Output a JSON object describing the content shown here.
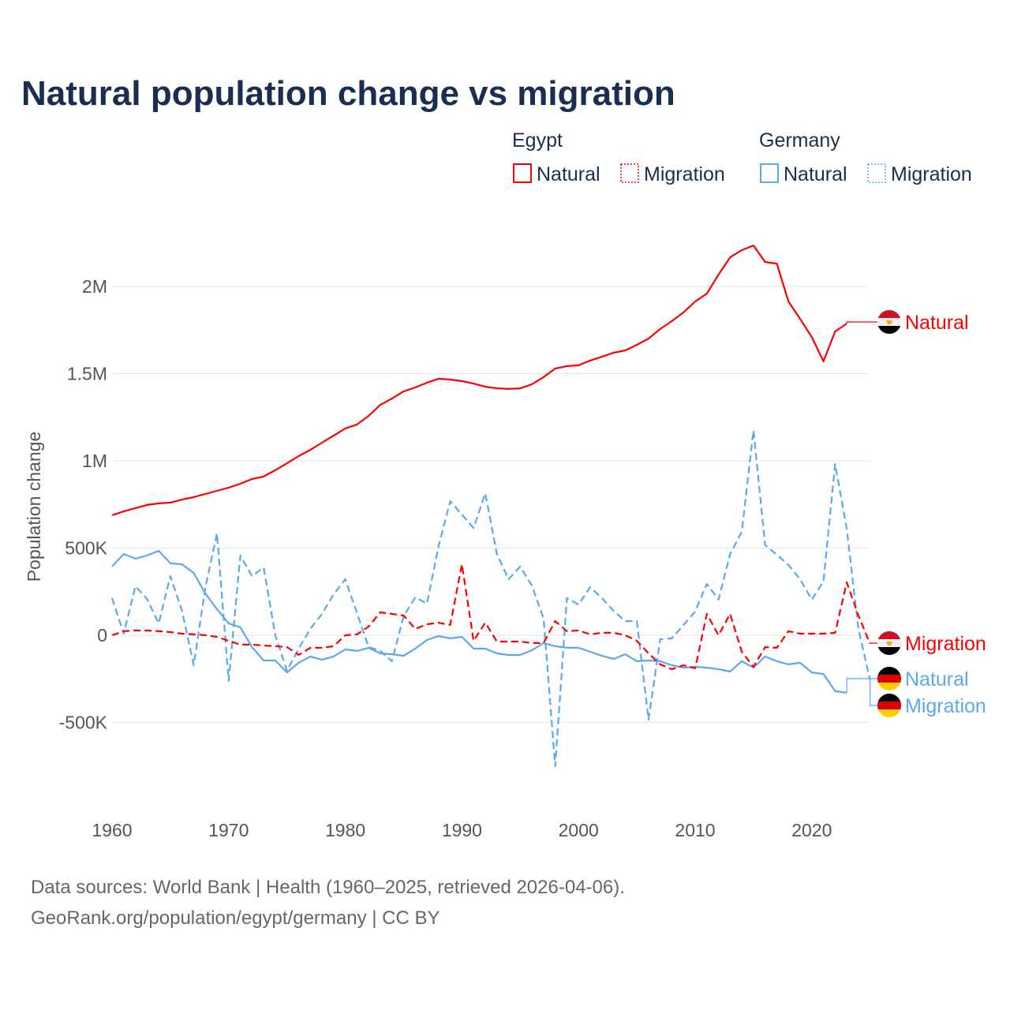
{
  "chart_data": {
    "type": "line",
    "title": "Natural population change vs migration",
    "ylabel": "Population change",
    "xlabel": "",
    "xlim": [
      1960,
      2025
    ],
    "ylim": [
      -1000000,
      2500000
    ],
    "x_ticks": [
      "1960",
      "1970",
      "1980",
      "1990",
      "2000",
      "2010",
      "2020"
    ],
    "y_ticks": [
      {
        "value": -500000,
        "label": "-500K"
      },
      {
        "value": 0,
        "label": "0"
      },
      {
        "value": 500000,
        "label": "500K"
      },
      {
        "value": 1000000,
        "label": "1M"
      },
      {
        "value": 1500000,
        "label": "1.5M"
      },
      {
        "value": 2000000,
        "label": "2M"
      }
    ],
    "grid": true,
    "legend": {
      "placement": "top-right",
      "groups": [
        {
          "title": "Egypt",
          "items": [
            "Natural",
            "Migration"
          ]
        },
        {
          "title": "Germany",
          "items": [
            "Natural",
            "Migration"
          ]
        }
      ]
    },
    "series": [
      {
        "name": "Natural",
        "country": "Egypt",
        "color": "#ff0000",
        "dashed": false,
        "start_year": 1960,
        "values": [
          688000,
          710000,
          729000,
          747000,
          756000,
          760000,
          778000,
          792000,
          810000,
          828000,
          846000,
          869000,
          896000,
          910000,
          946000,
          986000,
          1027000,
          1063000,
          1104000,
          1145000,
          1186000,
          1208000,
          1258000,
          1321000,
          1357000,
          1398000,
          1421000,
          1448000,
          1471000,
          1466000,
          1457000,
          1443000,
          1425000,
          1416000,
          1412000,
          1416000,
          1439000,
          1480000,
          1529000,
          1543000,
          1548000,
          1575000,
          1597000,
          1620000,
          1633000,
          1665000,
          1701000,
          1756000,
          1801000,
          1851000,
          1914000,
          1959000,
          2068000,
          2167000,
          2208000,
          2235000,
          2140000,
          2131000,
          1914000,
          1814000,
          1710000,
          1570000,
          1742000,
          1787000
        ]
      },
      {
        "name": "Migration",
        "country": "Egypt",
        "color": "#ff0000",
        "dashed": true,
        "start_year": 1960,
        "values": [
          0,
          23000,
          27000,
          27000,
          23000,
          18000,
          9000,
          5000,
          0,
          -9000,
          -32000,
          -54000,
          -54000,
          -59000,
          -63000,
          -68000,
          -113000,
          -72000,
          -72000,
          -63000,
          0,
          5000,
          50000,
          131000,
          122000,
          113000,
          36000,
          63000,
          72000,
          59000,
          407000,
          -32000,
          72000,
          -36000,
          -36000,
          -36000,
          -45000,
          -45000,
          81000,
          23000,
          27000,
          5000,
          14000,
          14000,
          0,
          -32000,
          -104000,
          -167000,
          -195000,
          -172000,
          -190000,
          122000,
          0,
          122000,
          -95000,
          -181000,
          -68000,
          -72000,
          23000,
          9000,
          9000,
          9000,
          14000,
          303000,
          113000,
          -50000
        ]
      },
      {
        "name": "Natural",
        "country": "Germany",
        "color": "#5ca8ee",
        "dashed": false,
        "start_year": 1960,
        "values": [
          394000,
          466000,
          439000,
          457000,
          484000,
          412000,
          407000,
          357000,
          240000,
          149000,
          68000,
          45000,
          -68000,
          -145000,
          -145000,
          -213000,
          -158000,
          -122000,
          -140000,
          -122000,
          -81000,
          -90000,
          -72000,
          -104000,
          -109000,
          -118000,
          -77000,
          -27000,
          -5000,
          -18000,
          -9000,
          -77000,
          -77000,
          -104000,
          -113000,
          -113000,
          -86000,
          -45000,
          -63000,
          -72000,
          -72000,
          -95000,
          -118000,
          -136000,
          -109000,
          -149000,
          -145000,
          -149000,
          -172000,
          -186000,
          -181000,
          -186000,
          -195000,
          -208000,
          -149000,
          -186000,
          -122000,
          -149000,
          -167000,
          -158000,
          -213000,
          -222000,
          -321000,
          -330000
        ]
      },
      {
        "name": "Migration",
        "country": "Germany",
        "color": "#5ca8ee",
        "dashed": true,
        "start_year": 1960,
        "values": [
          213000,
          9000,
          281000,
          208000,
          68000,
          339000,
          140000,
          -172000,
          271000,
          584000,
          -262000,
          457000,
          339000,
          389000,
          0,
          -204000,
          -77000,
          36000,
          122000,
          235000,
          321000,
          127000,
          -68000,
          -90000,
          -149000,
          109000,
          217000,
          181000,
          511000,
          769000,
          692000,
          615000,
          814000,
          466000,
          321000,
          394000,
          285000,
          95000,
          -751000,
          213000,
          176000,
          276000,
          213000,
          140000,
          81000,
          81000,
          -484000,
          -23000,
          -18000,
          59000,
          136000,
          294000,
          204000,
          466000,
          593000,
          1176000,
          516000,
          462000,
          403000,
          321000,
          204000,
          308000,
          982000,
          611000,
          36000,
          -258000
        ]
      }
    ],
    "end_labels": [
      "Natural",
      "Migration",
      "Natural",
      "Migration"
    ]
  },
  "footer": {
    "source": "Data sources: World Bank | Health (1960–2025, retrieved 2026-04-06).",
    "credit": "GeoRank.org/population/egypt/germany | CC BY"
  }
}
